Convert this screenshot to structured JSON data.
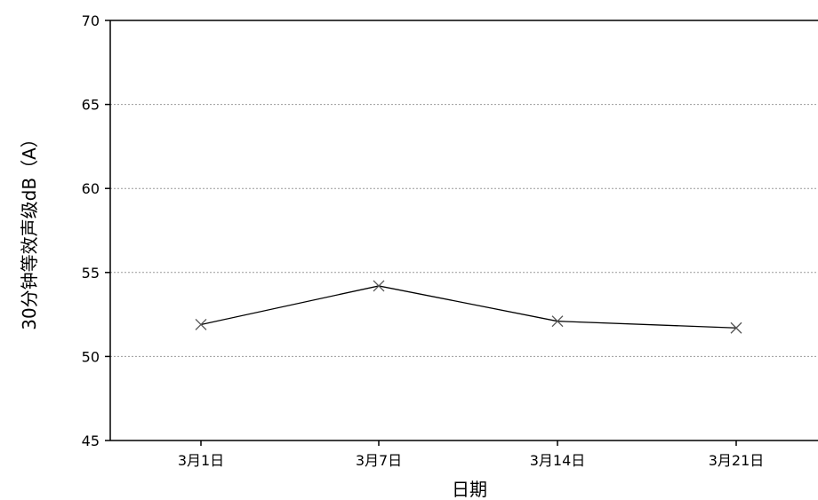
{
  "chart_data": {
    "type": "line",
    "title": "",
    "xlabel": "日期",
    "ylabel": "30分钟等效声级dB（A）",
    "categories": [
      "3月1日",
      "3月7日",
      "3月14日",
      "3月21日"
    ],
    "series": [
      {
        "values": [
          51.9,
          54.2,
          52.1,
          51.7
        ],
        "marker": "x",
        "color": "#000000"
      }
    ],
    "ylim": [
      45,
      70
    ],
    "yticks": [
      "45",
      "50",
      "55",
      "60",
      "65",
      "70"
    ],
    "grid": {
      "horizontal": true,
      "style": "dotted",
      "color": "#999999"
    },
    "legend": "none"
  }
}
